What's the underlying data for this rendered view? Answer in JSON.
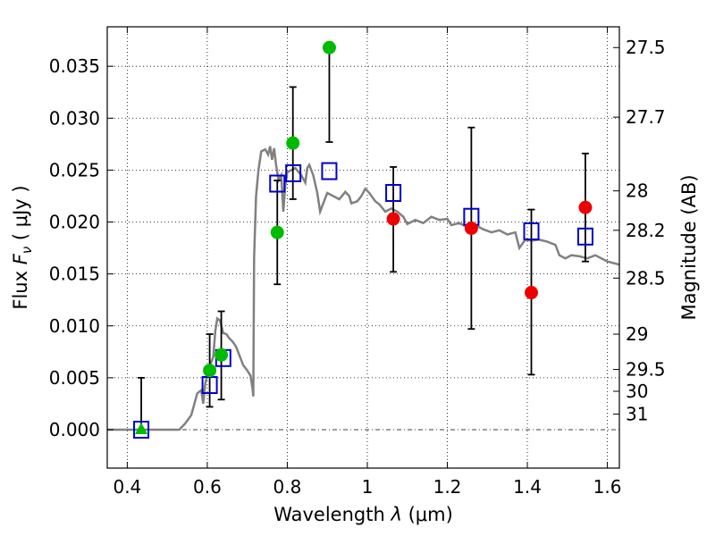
{
  "chart_data": {
    "type": "scatter",
    "xlabel_prefix": "Wavelength  ",
    "xlabel_lambda": "λ",
    "xlabel_unit": " (μm)",
    "ylabel_prefix": "Flux  ",
    "ylabel_symbol": "F",
    "ylabel_sub": "ν",
    "ylabel_unit": "  ( μJy )",
    "y2label": "Magnitude (AB)",
    "xlim": [
      0.35,
      1.63
    ],
    "ylim": [
      -0.0037,
      0.0388
    ],
    "grid": true,
    "x_ticks": [
      {
        "v": 0.4,
        "label": "0.4"
      },
      {
        "v": 0.6,
        "label": "0.6"
      },
      {
        "v": 0.8,
        "label": "0.8"
      },
      {
        "v": 1.0,
        "label": "1"
      },
      {
        "v": 1.2,
        "label": "1.2"
      },
      {
        "v": 1.4,
        "label": "1.4"
      },
      {
        "v": 1.6,
        "label": "1.6"
      }
    ],
    "y_ticks": [
      {
        "v": 0.0,
        "label": "0.000"
      },
      {
        "v": 0.005,
        "label": "0.005"
      },
      {
        "v": 0.01,
        "label": "0.010"
      },
      {
        "v": 0.015,
        "label": "0.015"
      },
      {
        "v": 0.02,
        "label": "0.020"
      },
      {
        "v": 0.025,
        "label": "0.025"
      },
      {
        "v": 0.03,
        "label": "0.030"
      },
      {
        "v": 0.035,
        "label": "0.035"
      }
    ],
    "y2_ticks": [
      {
        "flux": 0.0368,
        "label": "27.5"
      },
      {
        "flux": 0.0301,
        "label": "27.7"
      },
      {
        "flux": 0.023,
        "label": "28"
      },
      {
        "flux": 0.0192,
        "label": "28.2"
      },
      {
        "flux": 0.0146,
        "label": "28.5"
      },
      {
        "flux": 0.0092,
        "label": "29"
      },
      {
        "flux": 0.0058,
        "label": "29.5"
      },
      {
        "flux": 0.0037,
        "label": "30"
      },
      {
        "flux": 0.0015,
        "label": "31"
      }
    ],
    "model_sed": {
      "color": "#808080",
      "points": [
        [
          0.35,
          0.0
        ],
        [
          0.53,
          0.0
        ],
        [
          0.545,
          0.0006
        ],
        [
          0.56,
          0.0014
        ],
        [
          0.575,
          0.0035
        ],
        [
          0.585,
          0.0038
        ],
        [
          0.59,
          0.0025
        ],
        [
          0.595,
          0.0045
        ],
        [
          0.605,
          0.006
        ],
        [
          0.615,
          0.007
        ],
        [
          0.62,
          0.0095
        ],
        [
          0.625,
          0.0107
        ],
        [
          0.632,
          0.0105
        ],
        [
          0.64,
          0.0093
        ],
        [
          0.648,
          0.0092
        ],
        [
          0.655,
          0.0088
        ],
        [
          0.663,
          0.0085
        ],
        [
          0.672,
          0.008
        ],
        [
          0.68,
          0.0072
        ],
        [
          0.69,
          0.0062
        ],
        [
          0.7,
          0.0057
        ],
        [
          0.708,
          0.0052
        ],
        [
          0.713,
          0.004
        ],
        [
          0.715,
          0.0032
        ],
        [
          0.717,
          0.0165
        ],
        [
          0.722,
          0.0225
        ],
        [
          0.728,
          0.025
        ],
        [
          0.735,
          0.0268
        ],
        [
          0.745,
          0.027
        ],
        [
          0.752,
          0.0265
        ],
        [
          0.757,
          0.0273
        ],
        [
          0.762,
          0.026
        ],
        [
          0.767,
          0.0271
        ],
        [
          0.772,
          0.0255
        ],
        [
          0.778,
          0.024
        ],
        [
          0.785,
          0.0245
        ],
        [
          0.79,
          0.021
        ],
        [
          0.795,
          0.0235
        ],
        [
          0.8,
          0.0248
        ],
        [
          0.81,
          0.025
        ],
        [
          0.82,
          0.0252
        ],
        [
          0.835,
          0.0245
        ],
        [
          0.845,
          0.0238
        ],
        [
          0.85,
          0.0252
        ],
        [
          0.855,
          0.0255
        ],
        [
          0.865,
          0.0245
        ],
        [
          0.875,
          0.0228
        ],
        [
          0.882,
          0.021
        ],
        [
          0.89,
          0.0218
        ],
        [
          0.9,
          0.0228
        ],
        [
          0.915,
          0.0225
        ],
        [
          0.93,
          0.0222
        ],
        [
          0.945,
          0.0229
        ],
        [
          0.955,
          0.0225
        ],
        [
          0.96,
          0.0218
        ],
        [
          0.975,
          0.022
        ],
        [
          0.985,
          0.0225
        ],
        [
          0.995,
          0.0232
        ],
        [
          1.005,
          0.0228
        ],
        [
          1.02,
          0.022
        ],
        [
          1.03,
          0.0217
        ],
        [
          1.045,
          0.021
        ],
        [
          1.06,
          0.0213
        ],
        [
          1.075,
          0.021
        ],
        [
          1.09,
          0.0205
        ],
        [
          1.1,
          0.0198
        ],
        [
          1.12,
          0.0202
        ],
        [
          1.14,
          0.0199
        ],
        [
          1.16,
          0.0205
        ],
        [
          1.18,
          0.0202
        ],
        [
          1.2,
          0.0203
        ],
        [
          1.21,
          0.0197
        ],
        [
          1.23,
          0.0199
        ],
        [
          1.25,
          0.0195
        ],
        [
          1.27,
          0.0197
        ],
        [
          1.29,
          0.0193
        ],
        [
          1.31,
          0.019
        ],
        [
          1.33,
          0.0192
        ],
        [
          1.35,
          0.0188
        ],
        [
          1.37,
          0.019
        ],
        [
          1.38,
          0.0175
        ],
        [
          1.395,
          0.0183
        ],
        [
          1.41,
          0.0182
        ],
        [
          1.43,
          0.0183
        ],
        [
          1.45,
          0.0181
        ],
        [
          1.47,
          0.0178
        ],
        [
          1.48,
          0.0168
        ],
        [
          1.495,
          0.0165
        ],
        [
          1.51,
          0.0168
        ],
        [
          1.53,
          0.0167
        ],
        [
          1.55,
          0.0165
        ],
        [
          1.57,
          0.0168
        ],
        [
          1.6,
          0.0162
        ],
        [
          1.63,
          0.0159
        ]
      ]
    },
    "model_photometry": {
      "marker": "open-square",
      "color": "#0000cc",
      "points": [
        [
          0.435,
          0.0
        ],
        [
          0.606,
          0.0043
        ],
        [
          0.64,
          0.0069
        ],
        [
          0.775,
          0.0237
        ],
        [
          0.815,
          0.0247
        ],
        [
          0.905,
          0.0249
        ],
        [
          1.065,
          0.0228
        ],
        [
          1.26,
          0.0205
        ],
        [
          1.41,
          0.0191
        ],
        [
          1.545,
          0.0186
        ]
      ]
    },
    "observed_optical": {
      "marker": "filled-circle",
      "color": "#00bb00",
      "points": [
        {
          "x": 0.606,
          "y": 0.0057,
          "err_low": 0.0022,
          "err_high": 0.0092
        },
        {
          "x": 0.635,
          "y": 0.0072,
          "err_low": 0.0029,
          "err_high": 0.0114
        },
        {
          "x": 0.775,
          "y": 0.019,
          "err_low": 0.014,
          "err_high": 0.024
        },
        {
          "x": 0.814,
          "y": 0.0276,
          "err_low": 0.0222,
          "err_high": 0.033
        },
        {
          "x": 0.905,
          "y": 0.0368,
          "err_low": 0.0277,
          "err_high": 0.0368
        }
      ]
    },
    "observed_upper_limit": {
      "marker": "filled-triangle",
      "color": "#00bb00",
      "points": [
        {
          "x": 0.435,
          "y": 0.0,
          "err_low": 0.0,
          "err_high": 0.005
        }
      ]
    },
    "observed_infrared": {
      "marker": "filled-circle",
      "color": "#ee0000",
      "points": [
        {
          "x": 1.065,
          "y": 0.0203,
          "err_low": 0.0152,
          "err_high": 0.0253
        },
        {
          "x": 1.26,
          "y": 0.0194,
          "err_low": 0.0097,
          "err_high": 0.0291
        },
        {
          "x": 1.41,
          "y": 0.0132,
          "err_low": 0.0053,
          "err_high": 0.0212
        },
        {
          "x": 1.545,
          "y": 0.0214,
          "err_low": 0.0162,
          "err_high": 0.0266
        }
      ]
    }
  }
}
